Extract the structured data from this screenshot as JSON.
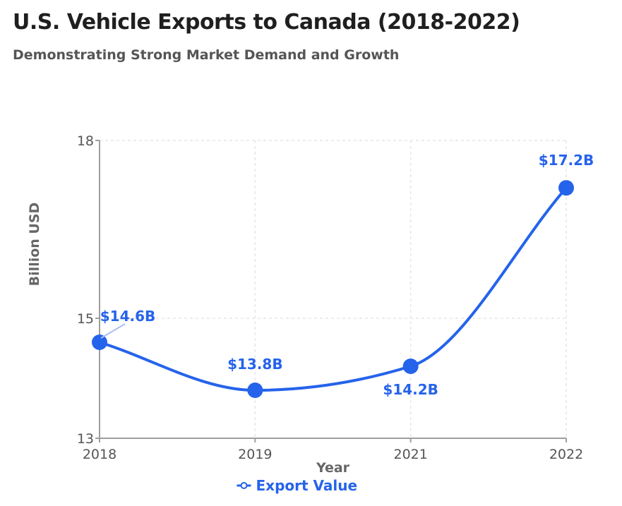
{
  "header": {
    "title": "U.S. Vehicle Exports to Canada (2018-2022)",
    "subtitle": "Demonstrating Strong Market Demand and Growth"
  },
  "chart_data": {
    "type": "line",
    "title": "U.S. Vehicle Exports to Canada (2018-2022)",
    "subtitle": "Demonstrating Strong Market Demand and Growth",
    "xlabel": "Year",
    "ylabel": "Billion USD",
    "x": [
      "2018",
      "2019",
      "2021",
      "2022"
    ],
    "series": [
      {
        "name": "Export Value",
        "values": [
          14.6,
          13.8,
          14.2,
          17.2
        ],
        "labels": [
          "$14.6B",
          "$13.8B",
          "$14.2B",
          "$17.2B"
        ],
        "color": "#2563eb"
      }
    ],
    "ylim": [
      13,
      18
    ],
    "yticks": [
      "13",
      "15",
      "18"
    ],
    "grid": true,
    "smooth": true,
    "legend_position": "bottom-center",
    "colors": {
      "line": "#2563eb",
      "axis": "#9e9e9e",
      "grid": "#e6e6e6"
    }
  }
}
